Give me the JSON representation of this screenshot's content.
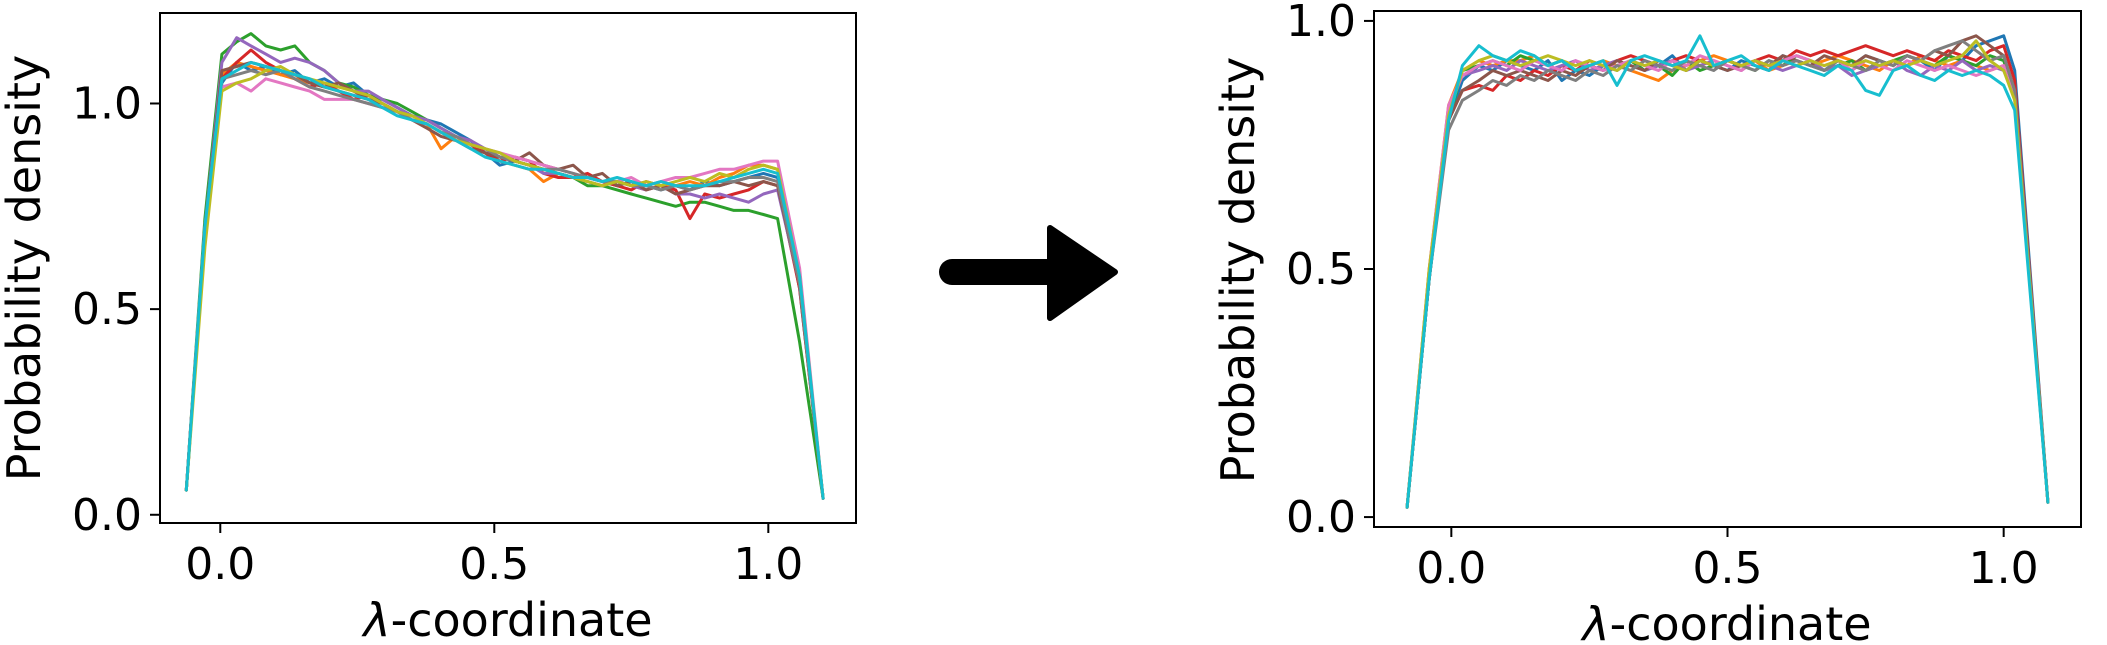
{
  "chart_data": [
    {
      "type": "line",
      "title": "",
      "xlabel_symbol": "λ",
      "xlabel_rest": "-coordinate",
      "ylabel": "Probability density",
      "xlim": [
        -0.11,
        1.16
      ],
      "ylim": [
        -0.02,
        1.22
      ],
      "xticks": [
        0.0,
        0.5,
        1.0
      ],
      "xtick_labels": [
        "0.0",
        "0.5",
        "1.0"
      ],
      "yticks": [
        0.0,
        0.5,
        1.0
      ],
      "ytick_labels": [
        "0.0",
        "0.5",
        "1.0"
      ],
      "grid": false,
      "legend": "none",
      "x": [
        -0.062,
        -0.028,
        0.003,
        0.03,
        0.056,
        0.083,
        0.11,
        0.136,
        0.163,
        0.19,
        0.216,
        0.243,
        0.27,
        0.296,
        0.323,
        0.35,
        0.377,
        0.403,
        0.43,
        0.457,
        0.483,
        0.51,
        0.537,
        0.564,
        0.59,
        0.617,
        0.644,
        0.67,
        0.697,
        0.724,
        0.75,
        0.777,
        0.804,
        0.831,
        0.857,
        0.884,
        0.911,
        0.937,
        0.964,
        0.991,
        1.017,
        1.057,
        1.1
      ],
      "series": [
        {
          "color": "#1f77b4",
          "values": [
            0.06,
            0.7,
            1.05,
            1.1,
            1.08,
            1.09,
            1.07,
            1.08,
            1.05,
            1.06,
            1.04,
            1.05,
            1.02,
            1.01,
            0.99,
            0.97,
            0.96,
            0.95,
            0.93,
            0.91,
            0.88,
            0.85,
            0.86,
            0.85,
            0.84,
            0.83,
            0.82,
            0.82,
            0.81,
            0.8,
            0.81,
            0.8,
            0.79,
            0.8,
            0.79,
            0.81,
            0.8,
            0.81,
            0.82,
            0.83,
            0.82,
            0.55,
            0.04
          ]
        },
        {
          "color": "#ff7f0e",
          "values": [
            0.06,
            0.7,
            1.07,
            1.1,
            1.09,
            1.08,
            1.07,
            1.06,
            1.05,
            1.04,
            1.03,
            1.02,
            1.01,
            1.0,
            0.98,
            0.96,
            0.95,
            0.89,
            0.92,
            0.9,
            0.88,
            0.86,
            0.85,
            0.84,
            0.81,
            0.83,
            0.82,
            0.81,
            0.8,
            0.81,
            0.8,
            0.79,
            0.8,
            0.8,
            0.81,
            0.8,
            0.82,
            0.83,
            0.85,
            0.85,
            0.84,
            0.57,
            0.04
          ]
        },
        {
          "color": "#2ca02c",
          "values": [
            0.06,
            0.72,
            1.12,
            1.15,
            1.17,
            1.14,
            1.13,
            1.14,
            1.1,
            1.08,
            1.05,
            1.04,
            1.02,
            1.01,
            1.0,
            0.98,
            0.96,
            0.94,
            0.92,
            0.9,
            0.88,
            0.87,
            0.86,
            0.85,
            0.84,
            0.83,
            0.82,
            0.8,
            0.8,
            0.79,
            0.78,
            0.77,
            0.76,
            0.75,
            0.76,
            0.76,
            0.75,
            0.74,
            0.74,
            0.73,
            0.72,
            0.42,
            0.04
          ]
        },
        {
          "color": "#d62728",
          "values": [
            0.06,
            0.7,
            1.06,
            1.1,
            1.13,
            1.1,
            1.08,
            1.06,
            1.04,
            1.05,
            1.03,
            1.01,
            1.02,
            1.0,
            0.98,
            0.96,
            0.95,
            0.93,
            0.92,
            0.9,
            0.88,
            0.86,
            0.87,
            0.86,
            0.83,
            0.82,
            0.82,
            0.83,
            0.81,
            0.8,
            0.79,
            0.81,
            0.8,
            0.79,
            0.72,
            0.78,
            0.77,
            0.78,
            0.79,
            0.81,
            0.8,
            0.55,
            0.04
          ]
        },
        {
          "color": "#9467bd",
          "values": [
            0.06,
            0.7,
            1.1,
            1.16,
            1.14,
            1.12,
            1.1,
            1.11,
            1.1,
            1.08,
            1.05,
            1.03,
            1.03,
            1.01,
            0.99,
            0.97,
            0.96,
            0.94,
            0.92,
            0.91,
            0.89,
            0.87,
            0.86,
            0.85,
            0.83,
            0.83,
            0.82,
            0.81,
            0.8,
            0.81,
            0.8,
            0.79,
            0.8,
            0.78,
            0.78,
            0.77,
            0.78,
            0.77,
            0.76,
            0.78,
            0.79,
            0.56,
            0.04
          ]
        },
        {
          "color": "#8c564b",
          "values": [
            0.06,
            0.7,
            1.08,
            1.09,
            1.1,
            1.09,
            1.08,
            1.07,
            1.05,
            1.04,
            1.05,
            1.03,
            1.01,
            1.0,
            0.98,
            0.96,
            0.94,
            0.92,
            0.91,
            0.89,
            0.88,
            0.87,
            0.86,
            0.88,
            0.85,
            0.84,
            0.85,
            0.82,
            0.83,
            0.8,
            0.81,
            0.79,
            0.8,
            0.78,
            0.79,
            0.8,
            0.8,
            0.81,
            0.8,
            0.81,
            0.8,
            0.56,
            0.04
          ]
        },
        {
          "color": "#e377c2",
          "values": [
            0.06,
            0.7,
            1.04,
            1.05,
            1.03,
            1.06,
            1.05,
            1.04,
            1.03,
            1.01,
            1.01,
            1.01,
            1.0,
            0.99,
            0.98,
            0.96,
            0.95,
            0.93,
            0.92,
            0.9,
            0.89,
            0.88,
            0.87,
            0.86,
            0.85,
            0.84,
            0.83,
            0.82,
            0.81,
            0.81,
            0.82,
            0.8,
            0.81,
            0.82,
            0.82,
            0.83,
            0.84,
            0.84,
            0.85,
            0.86,
            0.86,
            0.6,
            0.04
          ]
        },
        {
          "color": "#7f7f7f",
          "values": [
            0.06,
            0.7,
            1.06,
            1.07,
            1.08,
            1.07,
            1.08,
            1.06,
            1.04,
            1.03,
            1.02,
            1.01,
            1.0,
            0.99,
            0.98,
            0.96,
            0.95,
            0.93,
            0.92,
            0.9,
            0.89,
            0.87,
            0.86,
            0.85,
            0.84,
            0.84,
            0.83,
            0.82,
            0.81,
            0.81,
            0.8,
            0.8,
            0.79,
            0.8,
            0.79,
            0.8,
            0.81,
            0.81,
            0.82,
            0.82,
            0.81,
            0.56,
            0.04
          ]
        },
        {
          "color": "#bcbd22",
          "values": [
            0.06,
            0.65,
            1.03,
            1.05,
            1.06,
            1.08,
            1.09,
            1.07,
            1.06,
            1.05,
            1.04,
            1.03,
            1.02,
            1.0,
            0.98,
            0.97,
            0.95,
            0.93,
            0.91,
            0.9,
            0.89,
            0.88,
            0.86,
            0.85,
            0.84,
            0.83,
            0.82,
            0.81,
            0.8,
            0.81,
            0.8,
            0.81,
            0.8,
            0.81,
            0.82,
            0.81,
            0.83,
            0.82,
            0.84,
            0.85,
            0.84,
            0.58,
            0.04
          ]
        },
        {
          "color": "#17becf",
          "values": [
            0.06,
            0.7,
            1.06,
            1.08,
            1.1,
            1.09,
            1.08,
            1.07,
            1.06,
            1.04,
            1.03,
            1.02,
            1.01,
            0.99,
            0.97,
            0.96,
            0.95,
            0.93,
            0.91,
            0.89,
            0.87,
            0.86,
            0.85,
            0.84,
            0.84,
            0.83,
            0.82,
            0.82,
            0.81,
            0.82,
            0.81,
            0.8,
            0.81,
            0.8,
            0.8,
            0.8,
            0.81,
            0.82,
            0.83,
            0.84,
            0.83,
            0.58,
            0.04
          ]
        }
      ]
    },
    {
      "type": "line",
      "title": "",
      "xlabel_symbol": "λ",
      "xlabel_rest": "-coordinate",
      "ylabel": "Probability density",
      "xlim": [
        -0.14,
        1.14
      ],
      "ylim": [
        -0.02,
        1.02
      ],
      "xticks": [
        0.0,
        0.5,
        1.0
      ],
      "xtick_labels": [
        "0.0",
        "0.5",
        "1.0"
      ],
      "yticks": [
        0.0,
        0.5,
        1.0
      ],
      "ytick_labels": [
        "0.0",
        "0.5",
        "1.0"
      ],
      "grid": false,
      "legend": "none",
      "x": [
        -0.08,
        -0.04,
        -0.005,
        0.02,
        0.05,
        0.075,
        0.1,
        0.125,
        0.15,
        0.175,
        0.2,
        0.225,
        0.25,
        0.275,
        0.3,
        0.325,
        0.35,
        0.375,
        0.4,
        0.425,
        0.45,
        0.475,
        0.5,
        0.525,
        0.55,
        0.575,
        0.6,
        0.625,
        0.65,
        0.675,
        0.7,
        0.725,
        0.75,
        0.775,
        0.8,
        0.825,
        0.85,
        0.875,
        0.9,
        0.925,
        0.95,
        0.975,
        1.0,
        1.02,
        1.08
      ],
      "series": [
        {
          "color": "#1f77b4",
          "values": [
            0.02,
            0.48,
            0.8,
            0.88,
            0.91,
            0.9,
            0.92,
            0.91,
            0.9,
            0.92,
            0.88,
            0.9,
            0.89,
            0.91,
            0.9,
            0.92,
            0.9,
            0.91,
            0.93,
            0.9,
            0.92,
            0.91,
            0.9,
            0.92,
            0.91,
            0.9,
            0.93,
            0.92,
            0.91,
            0.9,
            0.92,
            0.91,
            0.93,
            0.92,
            0.91,
            0.93,
            0.92,
            0.9,
            0.93,
            0.92,
            0.95,
            0.96,
            0.97,
            0.9,
            0.03
          ]
        },
        {
          "color": "#ff7f0e",
          "values": [
            0.02,
            0.5,
            0.83,
            0.9,
            0.92,
            0.91,
            0.92,
            0.92,
            0.93,
            0.91,
            0.92,
            0.9,
            0.91,
            0.92,
            0.91,
            0.9,
            0.89,
            0.88,
            0.9,
            0.91,
            0.92,
            0.93,
            0.92,
            0.91,
            0.92,
            0.9,
            0.91,
            0.92,
            0.91,
            0.92,
            0.93,
            0.92,
            0.91,
            0.9,
            0.92,
            0.91,
            0.93,
            0.92,
            0.91,
            0.92,
            0.91,
            0.9,
            0.91,
            0.85,
            0.03
          ]
        },
        {
          "color": "#2ca02c",
          "values": [
            0.02,
            0.48,
            0.8,
            0.9,
            0.91,
            0.92,
            0.91,
            0.93,
            0.92,
            0.91,
            0.92,
            0.9,
            0.91,
            0.9,
            0.91,
            0.92,
            0.9,
            0.91,
            0.89,
            0.92,
            0.9,
            0.91,
            0.92,
            0.91,
            0.9,
            0.92,
            0.91,
            0.93,
            0.92,
            0.9,
            0.91,
            0.92,
            0.9,
            0.91,
            0.92,
            0.93,
            0.92,
            0.91,
            0.93,
            0.92,
            0.91,
            0.93,
            0.92,
            0.85,
            0.03
          ]
        },
        {
          "color": "#d62728",
          "values": [
            0.02,
            0.48,
            0.8,
            0.86,
            0.87,
            0.86,
            0.89,
            0.88,
            0.9,
            0.89,
            0.91,
            0.9,
            0.92,
            0.91,
            0.92,
            0.93,
            0.92,
            0.91,
            0.92,
            0.93,
            0.92,
            0.91,
            0.92,
            0.91,
            0.92,
            0.93,
            0.92,
            0.94,
            0.93,
            0.94,
            0.93,
            0.94,
            0.95,
            0.94,
            0.93,
            0.94,
            0.93,
            0.92,
            0.94,
            0.93,
            0.92,
            0.94,
            0.95,
            0.88,
            0.03
          ]
        },
        {
          "color": "#9467bd",
          "values": [
            0.02,
            0.49,
            0.82,
            0.89,
            0.9,
            0.91,
            0.9,
            0.92,
            0.91,
            0.9,
            0.91,
            0.92,
            0.9,
            0.91,
            0.92,
            0.91,
            0.9,
            0.91,
            0.92,
            0.9,
            0.91,
            0.92,
            0.91,
            0.9,
            0.92,
            0.91,
            0.9,
            0.91,
            0.92,
            0.9,
            0.91,
            0.89,
            0.9,
            0.91,
            0.92,
            0.9,
            0.89,
            0.91,
            0.9,
            0.92,
            0.9,
            0.91,
            0.9,
            0.85,
            0.03
          ]
        },
        {
          "color": "#8c564b",
          "values": [
            0.02,
            0.48,
            0.8,
            0.86,
            0.88,
            0.9,
            0.89,
            0.9,
            0.89,
            0.88,
            0.9,
            0.89,
            0.91,
            0.9,
            0.92,
            0.91,
            0.9,
            0.92,
            0.91,
            0.9,
            0.92,
            0.91,
            0.9,
            0.91,
            0.92,
            0.91,
            0.93,
            0.92,
            0.91,
            0.93,
            0.92,
            0.91,
            0.93,
            0.92,
            0.91,
            0.93,
            0.92,
            0.94,
            0.93,
            0.96,
            0.97,
            0.95,
            0.93,
            0.86,
            0.03
          ]
        },
        {
          "color": "#e377c2",
          "values": [
            0.02,
            0.5,
            0.83,
            0.89,
            0.91,
            0.92,
            0.91,
            0.9,
            0.92,
            0.91,
            0.9,
            0.92,
            0.91,
            0.9,
            0.91,
            0.92,
            0.91,
            0.9,
            0.92,
            0.91,
            0.93,
            0.92,
            0.91,
            0.9,
            0.92,
            0.91,
            0.92,
            0.93,
            0.92,
            0.91,
            0.92,
            0.9,
            0.92,
            0.91,
            0.9,
            0.92,
            0.91,
            0.9,
            0.91,
            0.9,
            0.89,
            0.9,
            0.91,
            0.84,
            0.03
          ]
        },
        {
          "color": "#7f7f7f",
          "values": [
            0.02,
            0.48,
            0.78,
            0.84,
            0.86,
            0.88,
            0.87,
            0.89,
            0.88,
            0.9,
            0.89,
            0.88,
            0.9,
            0.89,
            0.91,
            0.9,
            0.92,
            0.91,
            0.9,
            0.92,
            0.91,
            0.9,
            0.92,
            0.91,
            0.9,
            0.92,
            0.91,
            0.92,
            0.91,
            0.9,
            0.92,
            0.91,
            0.9,
            0.92,
            0.91,
            0.93,
            0.92,
            0.94,
            0.95,
            0.96,
            0.94,
            0.92,
            0.93,
            0.86,
            0.03
          ]
        },
        {
          "color": "#bcbd22",
          "values": [
            0.02,
            0.5,
            0.81,
            0.9,
            0.92,
            0.93,
            0.92,
            0.91,
            0.92,
            0.93,
            0.92,
            0.91,
            0.92,
            0.91,
            0.9,
            0.92,
            0.91,
            0.92,
            0.91,
            0.9,
            0.92,
            0.91,
            0.92,
            0.91,
            0.92,
            0.91,
            0.92,
            0.91,
            0.92,
            0.91,
            0.92,
            0.91,
            0.92,
            0.91,
            0.92,
            0.91,
            0.92,
            0.91,
            0.92,
            0.93,
            0.96,
            0.92,
            0.9,
            0.84,
            0.03
          ]
        },
        {
          "color": "#17becf",
          "values": [
            0.02,
            0.48,
            0.8,
            0.91,
            0.95,
            0.93,
            0.92,
            0.94,
            0.93,
            0.91,
            0.92,
            0.9,
            0.91,
            0.92,
            0.87,
            0.92,
            0.93,
            0.92,
            0.91,
            0.92,
            0.97,
            0.91,
            0.92,
            0.93,
            0.91,
            0.9,
            0.92,
            0.91,
            0.9,
            0.89,
            0.91,
            0.9,
            0.86,
            0.85,
            0.9,
            0.91,
            0.89,
            0.88,
            0.9,
            0.89,
            0.9,
            0.89,
            0.87,
            0.82,
            0.03
          ]
        }
      ]
    }
  ]
}
